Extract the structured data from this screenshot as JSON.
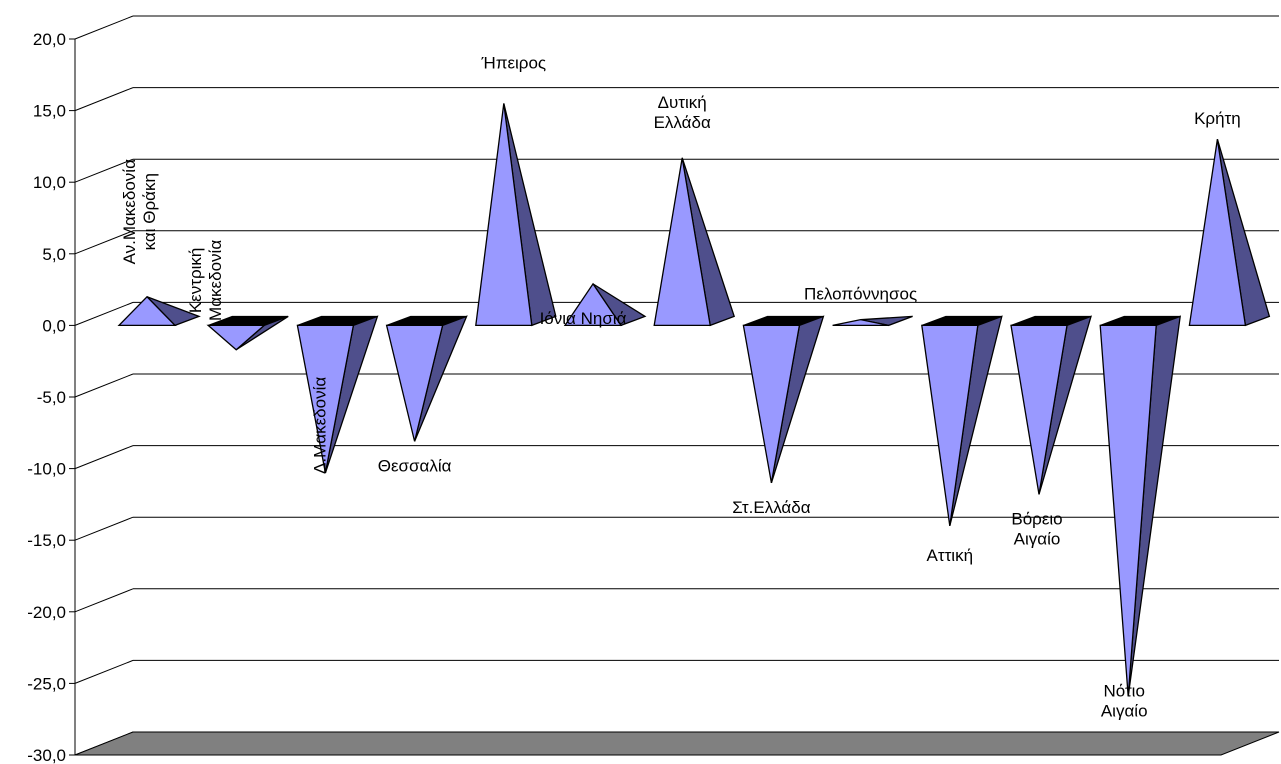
{
  "chart_data": {
    "type": "bar",
    "style": "3d-pyramid",
    "title": "",
    "xlabel": "",
    "ylabel": "",
    "ylim": [
      -30,
      20
    ],
    "ytick_labels": [
      "20,0",
      "15,0",
      "10,0",
      "5,0",
      "0,0",
      "-5,0",
      "-10,0",
      "-15,0",
      "-20,0",
      "-25,0",
      "-30,0"
    ],
    "grid": true,
    "legend": "none",
    "categories": [
      [
        "Αν.Μακεδονία",
        "και Θράκη"
      ],
      [
        "Κεντρική",
        "Μακεδονία"
      ],
      [
        "Δ.Μακεδονία"
      ],
      [
        "Θεσσαλία"
      ],
      [
        "Ήπειρος"
      ],
      [
        "Ιόνια Νησιά"
      ],
      [
        "Δυτική",
        "Ελλάδα"
      ],
      [
        "Στ.Ελλάδα"
      ],
      [
        "Πελοπόννησος"
      ],
      [
        "Αττική"
      ],
      [
        "Βόρειο",
        "Αιγαίο"
      ],
      [
        "Νότιο",
        "Αιγαίο"
      ],
      [
        "Κρήτη"
      ]
    ],
    "values": [
      2.0,
      -1.7,
      -10.3,
      -8.1,
      15.5,
      2.9,
      11.7,
      -11.0,
      0.4,
      -14.0,
      -11.8,
      -25.9,
      13.0
    ],
    "colors": {
      "front": "#9999ff",
      "side": "#4f4f8c",
      "top": "#000000",
      "floor": "#808080",
      "grid": "#000000"
    }
  }
}
